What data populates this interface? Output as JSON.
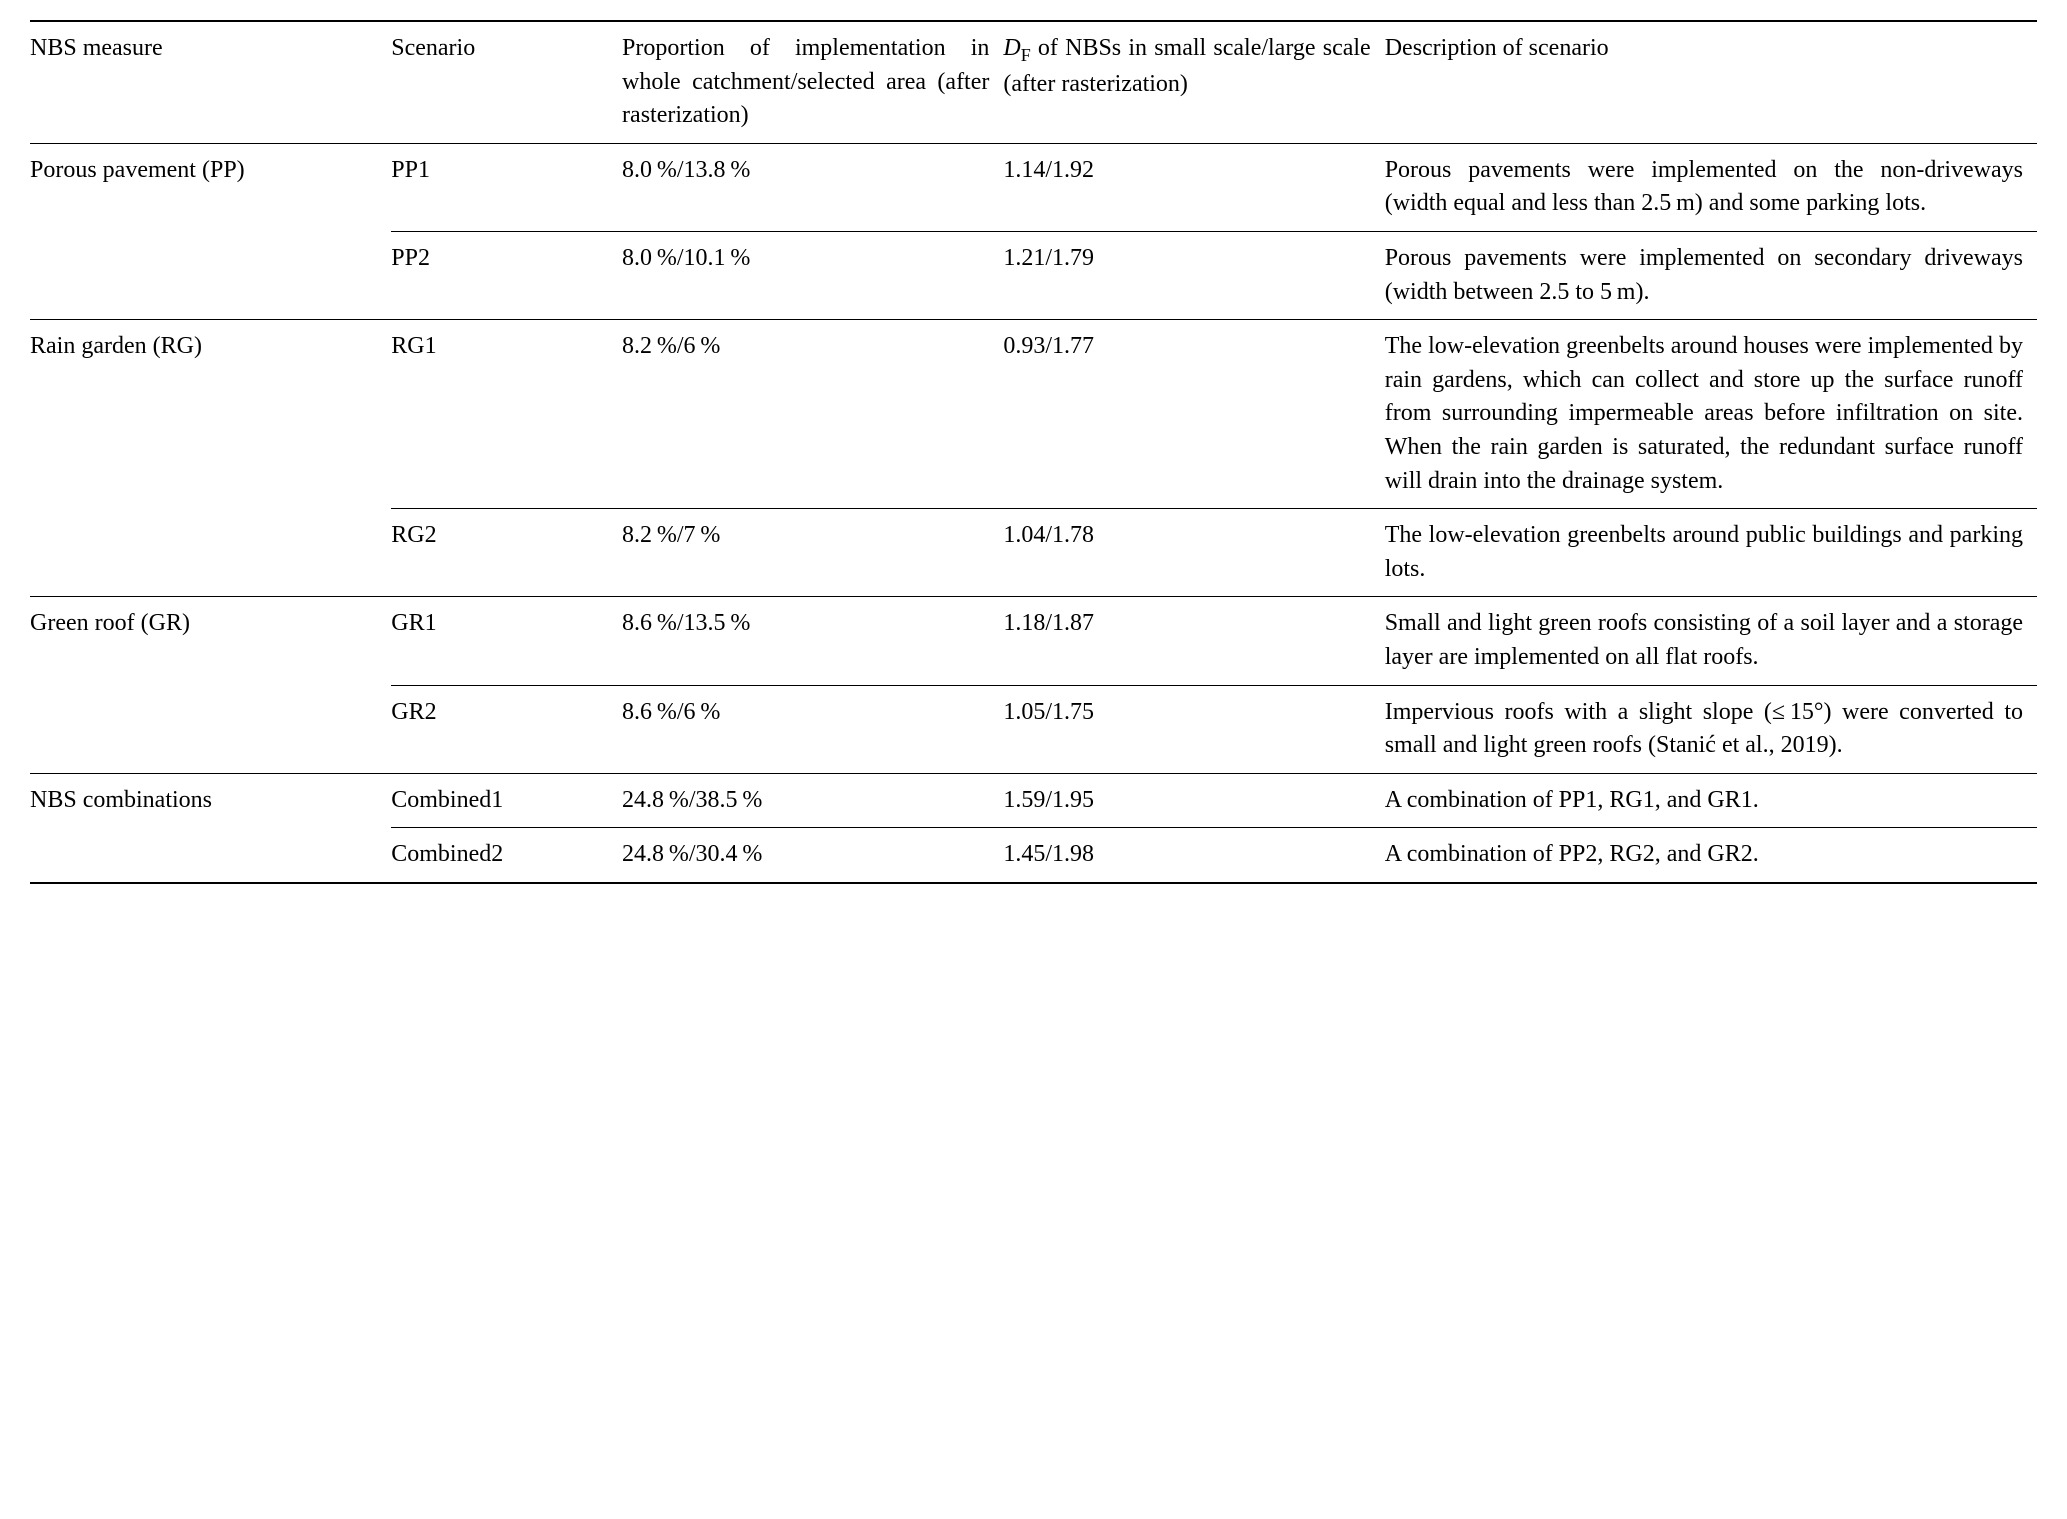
{
  "headers": {
    "measure": "NBS measure",
    "scenario": "Scenario",
    "proportion": "Proportion of im­plementation in whole catchment/selected area (after rasterization)",
    "description": "Description of scenario"
  },
  "groups": [
    {
      "measure": "Porous pavement (PP)",
      "rows": [
        {
          "scenario": "PP1",
          "proportion": "8.0 %/13.8 %",
          "df": "1.14/1.92",
          "desc": "Porous pavements were implemented on the non-driveways (width equal and less than 2.5 m) and some parking lots."
        },
        {
          "scenario": "PP2",
          "proportion": "8.0 %/10.1 %",
          "df": "1.21/1.79",
          "desc": "Porous pavements were implemented on secondary driveways (width between 2.5 to 5 m)."
        }
      ]
    },
    {
      "measure": "Rain garden (RG)",
      "rows": [
        {
          "scenario": "RG1",
          "proportion": "8.2 %/6 %",
          "df": "0.93/1.77",
          "desc": "The low-elevation greenbelts around houses were implemented by rain gar­dens, which can collect and store up the surface runoff from surrounding imper­meable areas before infiltration on site. When the rain garden is saturated, the redundant surface runoff will drain into the drainage system."
        },
        {
          "scenario": "RG2",
          "proportion": "8.2 %/7 %",
          "df": "1.04/1.78",
          "desc": "The low-elevation greenbelts around public buildings and parking lots."
        }
      ]
    },
    {
      "measure": "Green roof (GR)",
      "rows": [
        {
          "scenario": "GR1",
          "proportion": "8.6 %/13.5 %",
          "df": "1.18/1.87",
          "desc": "Small and light green roofs consisting of a soil layer and a storage layer are implemented on all flat roofs."
        },
        {
          "scenario": "GR2",
          "proportion": "8.6 %/6 %",
          "df": "1.05/1.75",
          "desc": "Impervious roofs with a slight slope (≤ 15°) were converted to small and light green roofs (Stanić et al., 2019)."
        }
      ]
    },
    {
      "measure": "NBS combinations",
      "rows": [
        {
          "scenario": "Combined1",
          "proportion": "24.8 %/38.5 %",
          "df": "1.59/1.95",
          "desc": "A combination of PP1, RG1, and GR1."
        },
        {
          "scenario": "Combined2",
          "proportion": "24.8 %/30.4 %",
          "df": "1.45/1.98",
          "desc": "A combination of PP2, RG2, and GR2."
        }
      ]
    }
  ]
}
